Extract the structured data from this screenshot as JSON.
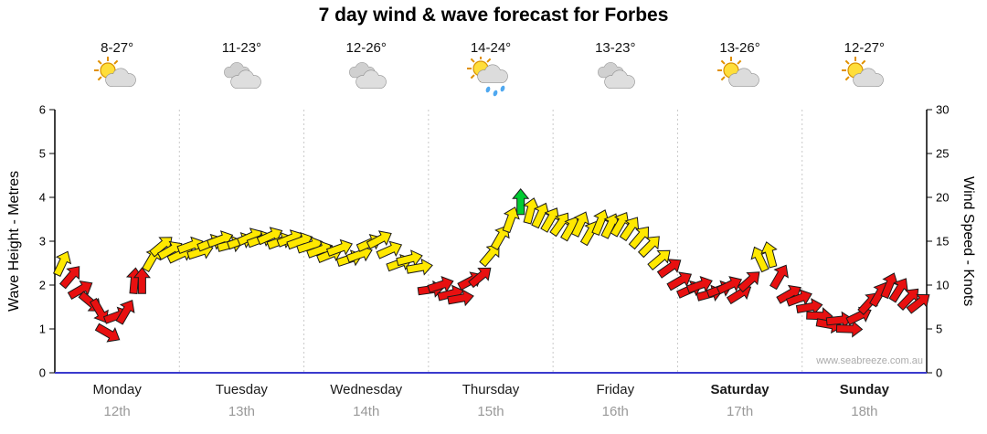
{
  "title": "7 day wind & wave forecast for Forbes",
  "watermark": "www.seabreeze.com.au",
  "axes": {
    "left_label": "Wave Height - Metres",
    "right_label": "Wind Speed - Knots",
    "left_ticks": [
      0,
      1,
      2,
      3,
      4,
      5,
      6
    ],
    "right_ticks": [
      0,
      5,
      10,
      15,
      20,
      25,
      30
    ]
  },
  "days": [
    {
      "name": "Monday",
      "date": "12th",
      "temp": "8-27°",
      "icon": "sun-cloud",
      "weekend": false
    },
    {
      "name": "Tuesday",
      "date": "13th",
      "temp": "11-23°",
      "icon": "cloudy",
      "weekend": false
    },
    {
      "name": "Wednesday",
      "date": "14th",
      "temp": "12-26°",
      "icon": "cloudy",
      "weekend": false
    },
    {
      "name": "Thursday",
      "date": "15th",
      "temp": "14-24°",
      "icon": "sun-cloud-rain",
      "weekend": false
    },
    {
      "name": "Friday",
      "date": "16th",
      "temp": "13-23°",
      "icon": "cloudy",
      "weekend": false
    },
    {
      "name": "Saturday",
      "date": "17th",
      "temp": "13-26°",
      "icon": "sun-cloud",
      "weekend": true
    },
    {
      "name": "Sunday",
      "date": "18th",
      "temp": "12-27°",
      "icon": "sun-cloud",
      "weekend": true
    }
  ],
  "colors": {
    "yellow": "#FFE800",
    "red": "#E81010",
    "green": "#00CC33",
    "x_axis_blue": "#3A3ACD",
    "grid": "#C9C9C9",
    "date_text": "#999999",
    "watermark_text": "#AAAAAA"
  },
  "chart_data": {
    "type": "scatter",
    "subtype": "wind-direction-arrows",
    "title": "7 day wind & wave forecast for Forbes",
    "x": {
      "label": "Day",
      "range_days": [
        0,
        7
      ],
      "day_labels": [
        "Monday 12th",
        "Tuesday 13th",
        "Wednesday 14th",
        "Thursday 15th",
        "Friday 16th",
        "Saturday 17th",
        "Sunday 18th"
      ]
    },
    "y_left": {
      "label": "Wave Height - Metres",
      "range": [
        0,
        6
      ],
      "ticks": [
        0,
        1,
        2,
        3,
        4,
        5,
        6
      ]
    },
    "y_right": {
      "label": "Wind Speed - Knots",
      "range": [
        0,
        30
      ],
      "ticks": [
        0,
        5,
        10,
        15,
        20,
        25,
        30
      ]
    },
    "grid": "vertical dotted lines at day boundaries",
    "legend": "none",
    "point_format": [
      "time_days_from_monday_start",
      "wind_speed_knots",
      "arrow_color_code",
      "arrow_direction_deg_0_is_up"
    ],
    "color_codes": {
      "y": "yellow",
      "r": "red",
      "g": "green"
    },
    "points": [
      [
        0.06,
        12.5,
        "y",
        25
      ],
      [
        0.13,
        11,
        "r",
        40
      ],
      [
        0.21,
        9.5,
        "r",
        60
      ],
      [
        0.29,
        8,
        "r",
        130
      ],
      [
        0.36,
        7,
        "r",
        150
      ],
      [
        0.43,
        4.5,
        "r",
        120
      ],
      [
        0.5,
        6.5,
        "r",
        70
      ],
      [
        0.57,
        7,
        "r",
        30
      ],
      [
        0.64,
        10.5,
        "r",
        5
      ],
      [
        0.7,
        10.5,
        "r",
        0
      ],
      [
        0.78,
        13,
        "y",
        30
      ],
      [
        0.86,
        14.5,
        "y",
        50
      ],
      [
        0.93,
        14,
        "y",
        60
      ],
      [
        1.01,
        13.5,
        "y",
        65
      ],
      [
        1.09,
        14.5,
        "y",
        70
      ],
      [
        1.17,
        13.8,
        "y",
        72
      ],
      [
        1.25,
        14.8,
        "y",
        68
      ],
      [
        1.33,
        15.2,
        "y",
        70
      ],
      [
        1.41,
        14.6,
        "y",
        75
      ],
      [
        1.49,
        15,
        "y",
        70
      ],
      [
        1.57,
        15.5,
        "y",
        66
      ],
      [
        1.65,
        15.2,
        "y",
        70
      ],
      [
        1.73,
        15.6,
        "y",
        66
      ],
      [
        1.81,
        15,
        "y",
        70
      ],
      [
        1.89,
        15.3,
        "y",
        68
      ],
      [
        1.97,
        15,
        "y",
        70
      ],
      [
        2.05,
        14.5,
        "y",
        72
      ],
      [
        2.13,
        14,
        "y",
        70
      ],
      [
        2.21,
        13.5,
        "y",
        68
      ],
      [
        2.29,
        14.2,
        "y",
        70
      ],
      [
        2.37,
        13,
        "y",
        72
      ],
      [
        2.45,
        13.5,
        "y",
        70
      ],
      [
        2.53,
        14.8,
        "y",
        66
      ],
      [
        2.61,
        15.2,
        "y",
        62
      ],
      [
        2.69,
        14,
        "y",
        66
      ],
      [
        2.77,
        12.5,
        "y",
        70
      ],
      [
        2.85,
        13,
        "y",
        76
      ],
      [
        2.93,
        12,
        "y",
        80
      ],
      [
        3.02,
        9.5,
        "r",
        82
      ],
      [
        3.1,
        10,
        "r",
        72
      ],
      [
        3.18,
        9,
        "r",
        76
      ],
      [
        3.26,
        8.5,
        "r",
        80
      ],
      [
        3.34,
        10.5,
        "r",
        62
      ],
      [
        3.42,
        11,
        "r",
        50
      ],
      [
        3.5,
        13.5,
        "y",
        40
      ],
      [
        3.58,
        15.5,
        "y",
        30
      ],
      [
        3.66,
        17.5,
        "y",
        20
      ],
      [
        3.74,
        19.5,
        "g",
        0
      ],
      [
        3.82,
        18.5,
        "y",
        15
      ],
      [
        3.9,
        18,
        "y",
        25
      ],
      [
        3.98,
        17.5,
        "y",
        30
      ],
      [
        4.06,
        17,
        "y",
        35
      ],
      [
        4.14,
        16.5,
        "y",
        30
      ],
      [
        4.22,
        17,
        "y",
        25
      ],
      [
        4.3,
        16,
        "y",
        30
      ],
      [
        4.38,
        17.2,
        "y",
        22
      ],
      [
        4.46,
        16.8,
        "y",
        26
      ],
      [
        4.54,
        17,
        "y",
        30
      ],
      [
        4.62,
        16.5,
        "y",
        34
      ],
      [
        4.7,
        15.5,
        "y",
        40
      ],
      [
        4.78,
        14.5,
        "y",
        45
      ],
      [
        4.86,
        13,
        "y",
        50
      ],
      [
        4.94,
        12,
        "r",
        55
      ],
      [
        5.02,
        10.5,
        "r",
        60
      ],
      [
        5.1,
        9.5,
        "r",
        66
      ],
      [
        5.18,
        10,
        "r",
        70
      ],
      [
        5.26,
        9,
        "r",
        75
      ],
      [
        5.34,
        9.5,
        "r",
        70
      ],
      [
        5.42,
        10,
        "r",
        64
      ],
      [
        5.5,
        9,
        "r",
        58
      ],
      [
        5.58,
        10.5,
        "r",
        48
      ],
      [
        5.66,
        13,
        "y",
        335
      ],
      [
        5.74,
        13.5,
        "y",
        345
      ],
      [
        5.82,
        11,
        "r",
        30
      ],
      [
        5.9,
        9,
        "r",
        60
      ],
      [
        5.98,
        8.5,
        "r",
        70
      ],
      [
        6.06,
        7.5,
        "r",
        80
      ],
      [
        6.14,
        6.5,
        "r",
        92
      ],
      [
        6.22,
        5.5,
        "r",
        100
      ],
      [
        6.3,
        6,
        "r",
        84
      ],
      [
        6.38,
        5,
        "r",
        92
      ],
      [
        6.46,
        6.5,
        "r",
        64
      ],
      [
        6.54,
        8,
        "r",
        42
      ],
      [
        6.62,
        9,
        "r",
        30
      ],
      [
        6.7,
        10,
        "r",
        22
      ],
      [
        6.78,
        9.5,
        "r",
        32
      ],
      [
        6.86,
        8.5,
        "r",
        44
      ],
      [
        6.94,
        8,
        "r",
        52
      ]
    ]
  }
}
